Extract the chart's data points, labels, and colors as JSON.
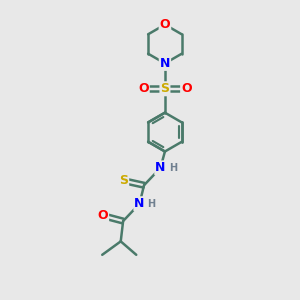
{
  "background_color": "#e8e8e8",
  "bond_color": "#4a7a6a",
  "bond_width": 1.8,
  "atom_colors": {
    "O": "#ff0000",
    "N": "#0000ff",
    "S": "#ccaa00",
    "H": "#708090",
    "C": "#4a7a6a"
  },
  "font_size_atom": 9,
  "font_size_H": 7,
  "figsize": [
    3.0,
    3.0
  ],
  "dpi": 100,
  "xlim": [
    0,
    10
  ],
  "ylim": [
    0,
    10
  ]
}
